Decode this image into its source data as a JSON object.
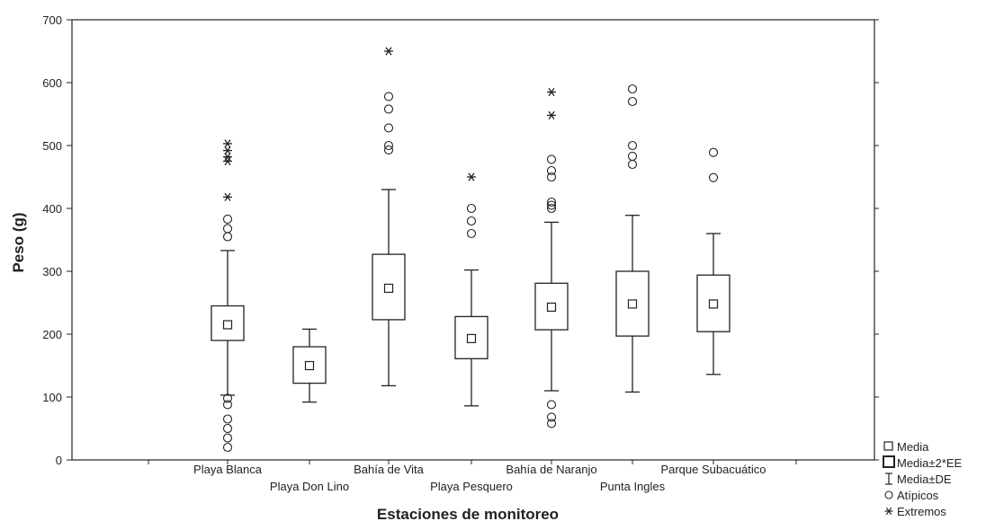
{
  "chart_data": {
    "type": "boxplot",
    "xlabel": "Estaciones de monitoreo",
    "ylabel": "Peso (g)",
    "ylim": [
      0,
      700
    ],
    "yticks": [
      0,
      100,
      200,
      300,
      400,
      500,
      600,
      700
    ],
    "grid": false,
    "legend_position": "bottom-right outside",
    "legend": [
      {
        "symbol": "small-square",
        "label": "Media"
      },
      {
        "symbol": "box",
        "label": "Media±2*EE"
      },
      {
        "symbol": "whisker",
        "label": "Media±DE"
      },
      {
        "symbol": "circle",
        "label": "Atípicos"
      },
      {
        "symbol": "asterisk",
        "label": "Extremos"
      }
    ],
    "categories": [
      "Playa Blanca",
      "Playa Don Lino",
      "Bahía de Vita",
      "Playa Pesquero",
      "Bahía de Naranjo",
      "Punta Ingles",
      "Parque Subacuático"
    ],
    "series": [
      {
        "label": "Playa Blanca",
        "mean": 215,
        "box": [
          190,
          245
        ],
        "whisker": [
          103,
          333
        ],
        "outliers": [
          20,
          35,
          50,
          65,
          88,
          98,
          355,
          368,
          383
        ],
        "extremes": [
          418,
          475,
          482,
          492,
          503
        ]
      },
      {
        "label": "Playa Don Lino",
        "mean": 150,
        "box": [
          122,
          180
        ],
        "whisker": [
          92,
          208
        ],
        "outliers": [],
        "extremes": []
      },
      {
        "label": "Bahía de Vita",
        "mean": 273,
        "box": [
          223,
          327
        ],
        "whisker": [
          118,
          430
        ],
        "outliers": [
          493,
          500,
          528,
          558,
          578
        ],
        "extremes": [
          650
        ]
      },
      {
        "label": "Playa Pesquero",
        "mean": 193,
        "box": [
          161,
          228
        ],
        "whisker": [
          86,
          302
        ],
        "outliers": [
          360,
          380,
          400
        ],
        "extremes": [
          450
        ]
      },
      {
        "label": "Bahía de Naranjo",
        "mean": 243,
        "box": [
          207,
          281
        ],
        "whisker": [
          110,
          378
        ],
        "outliers": [
          58,
          68,
          88,
          400,
          405,
          410,
          450,
          460,
          478
        ],
        "extremes": [
          548,
          585
        ]
      },
      {
        "label": "Punta Ingles",
        "mean": 248,
        "box": [
          197,
          300
        ],
        "whisker": [
          108,
          389
        ],
        "outliers": [
          470,
          483,
          500,
          570,
          590
        ],
        "extremes": []
      },
      {
        "label": "Parque Subacuático",
        "mean": 248,
        "box": [
          204,
          294
        ],
        "whisker": [
          136,
          360
        ],
        "outliers": [
          449,
          489
        ],
        "extremes": []
      }
    ]
  }
}
